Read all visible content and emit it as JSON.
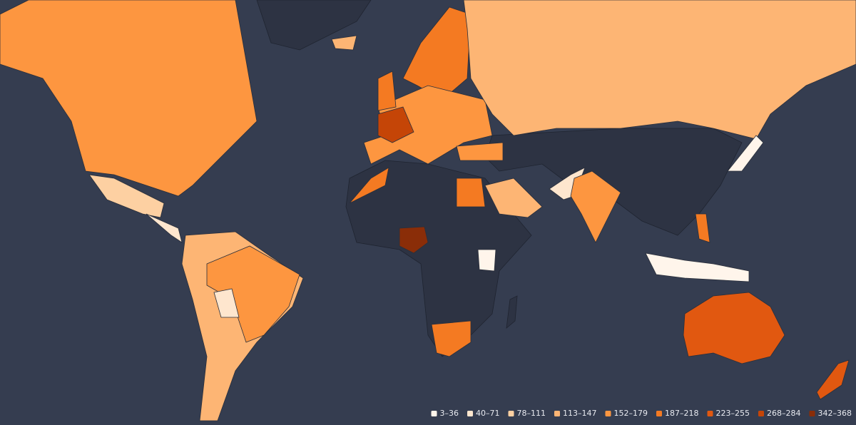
{
  "legend": [
    {
      "label": "3–36",
      "color": "#fff5eb"
    },
    {
      "label": "40–71",
      "color": "#fee6ce"
    },
    {
      "label": "78–111",
      "color": "#fdd0a2"
    },
    {
      "label": "113–147",
      "color": "#fdb574"
    },
    {
      "label": "152–179",
      "color": "#fd9640"
    },
    {
      "label": "187–218",
      "color": "#f47a22"
    },
    {
      "label": "223–255",
      "color": "#e15810"
    },
    {
      "label": "268–284",
      "color": "#c54507"
    },
    {
      "label": "342–368",
      "color": "#8a2d08"
    }
  ]
}
